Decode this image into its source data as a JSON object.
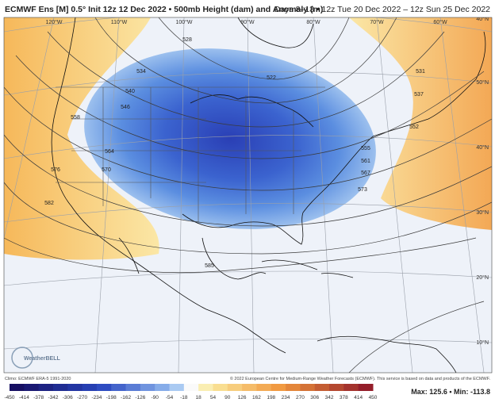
{
  "header": {
    "title_left": "ECMWF Ens [M] 0.5° Init 12z 12 Dec 2022 • 500mb Height (dam) and Anomaly (m)",
    "title_right": "Days 8–13 • 12z Tue 20 Dec 2022 – 12z Sun 25 Dec 2022"
  },
  "map": {
    "longitude_labels": [
      "120°W",
      "110°W",
      "100°W",
      "90°W",
      "80°W",
      "70°W",
      "60°W"
    ],
    "latitude_labels": [
      "40°N",
      "50°N",
      "40°N",
      "30°N",
      "20°N",
      "10°N"
    ],
    "contour_labels": [
      "528",
      "534",
      "540",
      "546",
      "522",
      "558",
      "564",
      "570",
      "576",
      "582",
      "585",
      "531",
      "537",
      "552",
      "555",
      "561",
      "567",
      "573"
    ],
    "logo": "WeatherBELL"
  },
  "footer": {
    "climo": "Climo: ECMWF ERA-5 1991-2020",
    "copyright": "© 2022 European Centre for Medium-Range Weather Forecasts (ECMWF). This service is based on data and products of the ECMWF.",
    "colorbar_ticks": [
      -450,
      -414,
      -378,
      -342,
      -306,
      -270,
      -234,
      -198,
      -162,
      -126,
      -90,
      -54,
      -18,
      18,
      54,
      90,
      126,
      162,
      198,
      234,
      270,
      306,
      342,
      378,
      414,
      450
    ],
    "stats": "Max: 125.6 • Min: -113.8"
  }
}
